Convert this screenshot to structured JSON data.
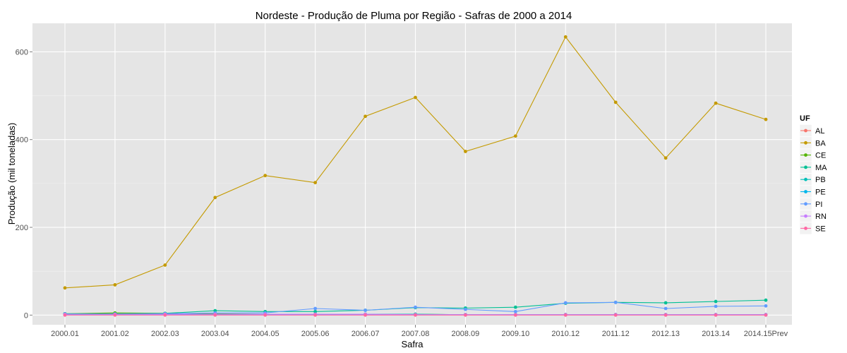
{
  "chart_data": {
    "type": "line",
    "title": "Nordeste  - Produção de Pluma por Região - Safras de 2000 a 2014",
    "xlabel": "Safra",
    "ylabel": "Produção (mil toneladas)",
    "categories": [
      "2000.01",
      "2001.02",
      "2002.03",
      "2003.04",
      "2004.05",
      "2005.06",
      "2006.07",
      "2007.08",
      "2008.09",
      "2009.10",
      "2010.12",
      "2011.12",
      "2012.13",
      "2013.14",
      "2014.15Prev"
    ],
    "y_ticks": [
      0,
      200,
      400,
      600
    ],
    "ylim": [
      -22,
      665
    ],
    "grid": true,
    "legend_title": "UF",
    "legend_position": "right",
    "series": [
      {
        "name": "AL",
        "color": "#F8766D",
        "values": [
          1,
          1,
          1,
          1,
          1,
          1,
          1,
          1,
          1,
          1,
          1,
          1,
          1,
          1,
          1
        ]
      },
      {
        "name": "BA",
        "color": "#C49A00",
        "values": [
          62,
          69,
          114,
          268,
          318,
          302,
          453,
          496,
          373,
          408,
          634,
          485,
          358,
          483,
          446
        ]
      },
      {
        "name": "CE",
        "color": "#53B400",
        "values": [
          3,
          5,
          4,
          3,
          2,
          2,
          2,
          2,
          1,
          1,
          1,
          1,
          1,
          1,
          1
        ]
      },
      {
        "name": "MA",
        "color": "#00C094",
        "values": [
          3,
          3,
          4,
          10,
          8,
          8,
          11,
          17,
          16,
          18,
          27,
          29,
          28,
          31,
          34
        ]
      },
      {
        "name": "PB",
        "color": "#00C0B8",
        "values": [
          3,
          2,
          2,
          2,
          2,
          2,
          2,
          2,
          1,
          1,
          1,
          1,
          1,
          1,
          1
        ]
      },
      {
        "name": "PE",
        "color": "#00B6EB",
        "values": [
          1,
          1,
          1,
          1,
          1,
          1,
          1,
          1,
          1,
          1,
          1,
          1,
          1,
          1,
          1
        ]
      },
      {
        "name": "PI",
        "color": "#619CFF",
        "values": [
          2,
          2,
          3,
          5,
          5,
          15,
          11,
          18,
          13,
          8,
          28,
          29,
          15,
          20,
          21
        ]
      },
      {
        "name": "RN",
        "color": "#C77CFF",
        "values": [
          2,
          2,
          2,
          2,
          2,
          2,
          2,
          1,
          1,
          1,
          1,
          1,
          1,
          1,
          1
        ]
      },
      {
        "name": "SE",
        "color": "#FF67A4",
        "values": [
          0,
          0,
          0,
          0,
          0,
          0,
          0,
          0,
          0,
          0,
          0,
          0,
          0,
          0,
          0
        ]
      }
    ]
  }
}
